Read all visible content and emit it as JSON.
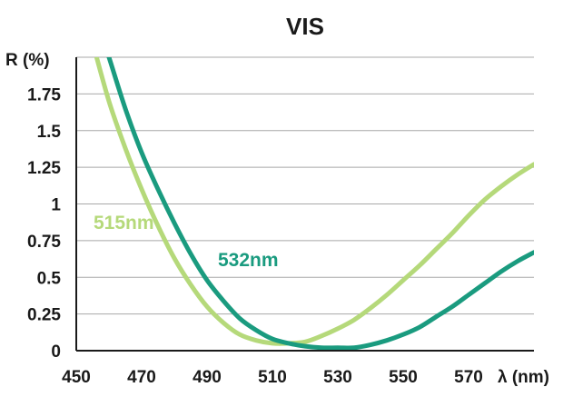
{
  "chart_data": {
    "type": "line",
    "title": "VIS",
    "xlabel": "λ (nm)",
    "ylabel": "R (%)",
    "xlim": [
      450,
      590
    ],
    "ylim": [
      0,
      2
    ],
    "x_ticks": [
      "450",
      "470",
      "490",
      "510",
      "530",
      "550",
      "570"
    ],
    "y_ticks": [
      "0",
      "0.25",
      "0.5",
      "0.75",
      "1",
      "1.25",
      "1.5",
      "1.75"
    ],
    "grid": true,
    "series": [
      {
        "name": "515nm",
        "color": "#b5d97a",
        "x": [
          455,
          460,
          465,
          470,
          475,
          480,
          485,
          490,
          495,
          500,
          505,
          510,
          515,
          520,
          525,
          530,
          535,
          540,
          545,
          550,
          555,
          560,
          565,
          570,
          575,
          580,
          585,
          590
        ],
        "y": [
          2.1,
          1.7,
          1.38,
          1.1,
          0.85,
          0.63,
          0.45,
          0.3,
          0.19,
          0.11,
          0.07,
          0.05,
          0.05,
          0.06,
          0.1,
          0.15,
          0.21,
          0.29,
          0.38,
          0.48,
          0.58,
          0.69,
          0.8,
          0.92,
          1.03,
          1.12,
          1.2,
          1.27
        ]
      },
      {
        "name": "532nm",
        "color": "#1a9b7f",
        "x": [
          457,
          460,
          465,
          470,
          475,
          480,
          485,
          490,
          495,
          500,
          505,
          510,
          515,
          520,
          525,
          530,
          535,
          540,
          545,
          550,
          555,
          560,
          565,
          570,
          575,
          580,
          585,
          590
        ],
        "y": [
          2.2,
          2.0,
          1.65,
          1.35,
          1.1,
          0.87,
          0.66,
          0.48,
          0.34,
          0.22,
          0.14,
          0.08,
          0.05,
          0.03,
          0.02,
          0.02,
          0.02,
          0.04,
          0.07,
          0.11,
          0.16,
          0.23,
          0.3,
          0.38,
          0.46,
          0.54,
          0.61,
          0.67
        ]
      }
    ]
  }
}
